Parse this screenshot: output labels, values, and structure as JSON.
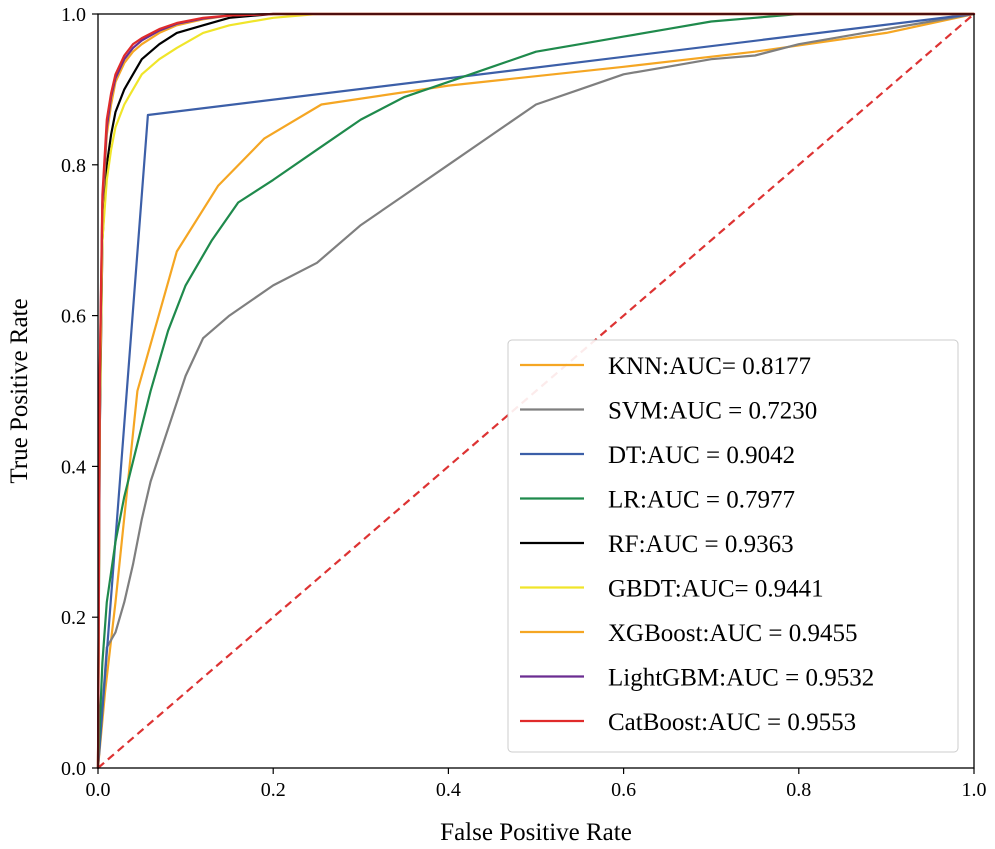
{
  "chart_data": {
    "type": "line",
    "title": "",
    "xlabel": "False Positive Rate",
    "ylabel": "True Positive Rate",
    "xlim": [
      0.0,
      1.0
    ],
    "ylim": [
      0.0,
      1.0
    ],
    "xticks": [
      "0.0",
      "0.2",
      "0.4",
      "0.6",
      "0.8",
      "1.0"
    ],
    "yticks": [
      "0.0",
      "0.2",
      "0.4",
      "0.6",
      "0.8",
      "1.0"
    ],
    "grid": false,
    "legend_position": "lower-right",
    "baseline": {
      "name": "chance",
      "color": "#dd3333",
      "style": "dashed",
      "x": [
        0,
        1
      ],
      "y": [
        0,
        1
      ]
    },
    "series": [
      {
        "name": "KNN:AUC= 0.8177",
        "color": "#f5a623",
        "x": [
          0,
          0.008,
          0.02,
          0.045,
          0.09,
          0.137,
          0.19,
          0.255,
          0.4,
          0.6,
          0.75,
          0.9,
          1.0
        ],
        "y": [
          0,
          0.1,
          0.22,
          0.5,
          0.685,
          0.772,
          0.835,
          0.88,
          0.905,
          0.93,
          0.95,
          0.975,
          1.0
        ]
      },
      {
        "name": "SVM:AUC = 0.7230",
        "color": "#7f7f7f",
        "x": [
          0,
          0.01,
          0.02,
          0.03,
          0.04,
          0.05,
          0.06,
          0.08,
          0.1,
          0.12,
          0.15,
          0.2,
          0.25,
          0.3,
          0.35,
          0.4,
          0.45,
          0.5,
          0.55,
          0.6,
          0.65,
          0.7,
          0.75,
          0.8,
          0.9,
          1.0
        ],
        "y": [
          0,
          0.16,
          0.18,
          0.22,
          0.27,
          0.33,
          0.38,
          0.45,
          0.52,
          0.57,
          0.6,
          0.64,
          0.67,
          0.72,
          0.76,
          0.8,
          0.84,
          0.88,
          0.9,
          0.92,
          0.93,
          0.94,
          0.945,
          0.96,
          0.98,
          1.0
        ]
      },
      {
        "name": "DT:AUC = 0.9042",
        "color": "#3c5fa8",
        "x": [
          0,
          0.057,
          1.0
        ],
        "y": [
          0,
          0.866,
          1.0
        ]
      },
      {
        "name": "LR:AUC = 0.7977",
        "color": "#1f8a4c",
        "x": [
          0,
          0.005,
          0.01,
          0.02,
          0.03,
          0.045,
          0.06,
          0.08,
          0.1,
          0.13,
          0.16,
          0.2,
          0.25,
          0.3,
          0.35,
          0.4,
          0.45,
          0.5,
          0.55,
          0.6,
          0.65,
          0.7,
          0.75,
          0.8,
          0.85,
          1.0
        ],
        "y": [
          0,
          0.14,
          0.22,
          0.3,
          0.36,
          0.43,
          0.5,
          0.58,
          0.64,
          0.7,
          0.75,
          0.78,
          0.82,
          0.86,
          0.89,
          0.91,
          0.93,
          0.95,
          0.96,
          0.97,
          0.98,
          0.99,
          0.995,
          1.0,
          1.0,
          1.0
        ]
      },
      {
        "name": "RF:AUC = 0.9363",
        "color": "#000000",
        "x": [
          0,
          0.002,
          0.005,
          0.01,
          0.015,
          0.02,
          0.03,
          0.04,
          0.05,
          0.07,
          0.09,
          0.12,
          0.15,
          0.2,
          0.3,
          1.0
        ],
        "y": [
          0,
          0.45,
          0.7,
          0.8,
          0.84,
          0.87,
          0.9,
          0.92,
          0.94,
          0.96,
          0.975,
          0.985,
          0.995,
          1.0,
          1.0,
          1.0
        ]
      },
      {
        "name": "GBDT:AUC= 0.9441",
        "color": "#f0e52a",
        "x": [
          0,
          0.002,
          0.005,
          0.01,
          0.015,
          0.02,
          0.03,
          0.04,
          0.05,
          0.07,
          0.09,
          0.12,
          0.15,
          0.2,
          0.25,
          1.0
        ],
        "y": [
          0,
          0.47,
          0.7,
          0.78,
          0.82,
          0.85,
          0.88,
          0.9,
          0.92,
          0.94,
          0.955,
          0.975,
          0.985,
          0.995,
          1.0,
          1.0
        ]
      },
      {
        "name": "XGBoost:AUC = 0.9455",
        "color": "#f5a623",
        "x": [
          0,
          0.002,
          0.005,
          0.01,
          0.015,
          0.02,
          0.03,
          0.04,
          0.05,
          0.07,
          0.09,
          0.12,
          0.15,
          0.2,
          1.0
        ],
        "y": [
          0,
          0.5,
          0.74,
          0.84,
          0.88,
          0.91,
          0.935,
          0.95,
          0.96,
          0.975,
          0.985,
          0.993,
          0.998,
          1.0,
          1.0
        ]
      },
      {
        "name": "LightGBM:AUC = 0.9532",
        "color": "#6b2c91",
        "x": [
          0,
          0.002,
          0.005,
          0.01,
          0.015,
          0.02,
          0.03,
          0.04,
          0.05,
          0.07,
          0.09,
          0.12,
          0.15,
          0.2,
          1.0
        ],
        "y": [
          0,
          0.52,
          0.75,
          0.85,
          0.89,
          0.915,
          0.94,
          0.955,
          0.965,
          0.978,
          0.987,
          0.994,
          0.998,
          1.0,
          1.0
        ]
      },
      {
        "name": "CatBoost:AUC = 0.9553",
        "color": "#e02b2b",
        "x": [
          0,
          0.002,
          0.005,
          0.01,
          0.015,
          0.02,
          0.03,
          0.04,
          0.05,
          0.07,
          0.09,
          0.12,
          0.15,
          0.2,
          0.31,
          1.0
        ],
        "y": [
          0,
          0.53,
          0.76,
          0.86,
          0.895,
          0.92,
          0.945,
          0.96,
          0.968,
          0.98,
          0.988,
          0.995,
          0.998,
          1.0,
          1.0,
          1.0
        ]
      }
    ]
  }
}
